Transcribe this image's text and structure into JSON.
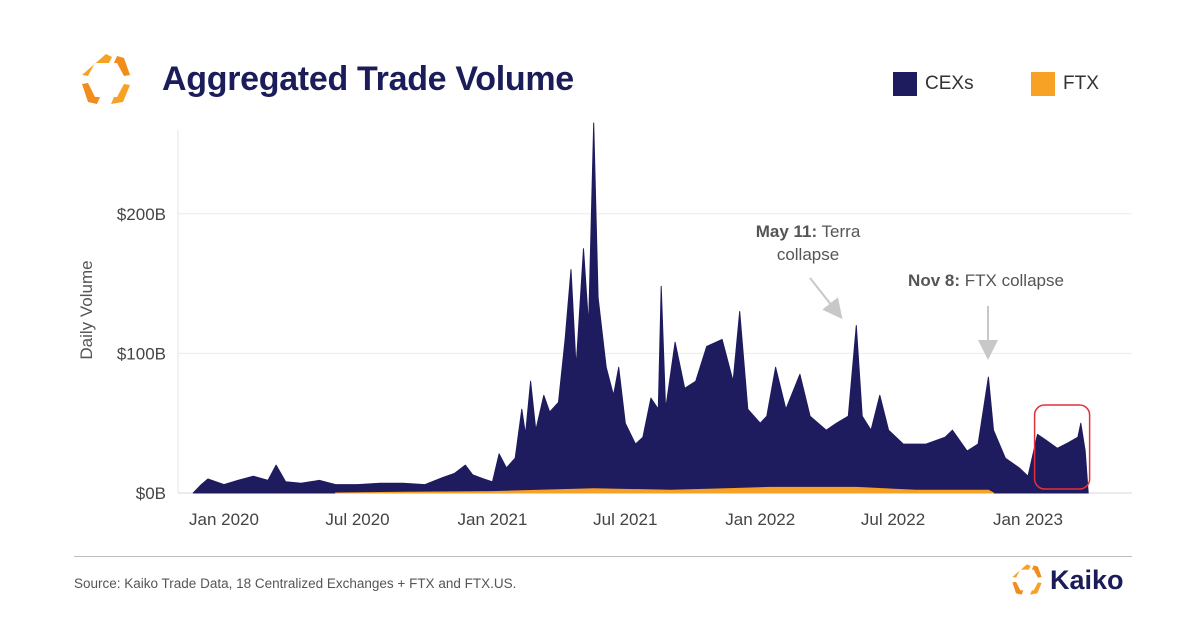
{
  "header": {
    "title": "Aggregated Trade Volume",
    "logo_icon": "kaiko-logo-icon"
  },
  "legend": [
    {
      "label": "CEXs",
      "color": "#1e1b5e"
    },
    {
      "label": "FTX",
      "color": "#f7a125"
    }
  ],
  "footer": {
    "source": "Source: Kaiko Trade Data, 18 Centralized Exchanges + FTX and FTX.US.",
    "brand": "Kaiko"
  },
  "chart_data": {
    "type": "area",
    "title": "Aggregated Trade Volume",
    "xlabel": "",
    "ylabel": "Daily Volume",
    "ylim": [
      0,
      260
    ],
    "y_unit": "billion USD",
    "yticks": [
      {
        "value": 0,
        "label": "$0B"
      },
      {
        "value": 100,
        "label": "$100B"
      },
      {
        "value": 200,
        "label": "$200B"
      }
    ],
    "xticks": [
      {
        "date": "2020-01-01",
        "label": "Jan 2020"
      },
      {
        "date": "2020-07-01",
        "label": "Jul 2020"
      },
      {
        "date": "2021-01-01",
        "label": "Jan 2021"
      },
      {
        "date": "2021-07-01",
        "label": "Jul 2021"
      },
      {
        "date": "2022-01-01",
        "label": "Jan 2022"
      },
      {
        "date": "2022-07-01",
        "label": "Jul 2022"
      },
      {
        "date": "2023-01-01",
        "label": "Jan 2023"
      }
    ],
    "grid": true,
    "series": [
      {
        "name": "CEXs",
        "color": "#1e1b5e",
        "points": [
          [
            "2019-11-20",
            0
          ],
          [
            "2019-12-01",
            6
          ],
          [
            "2019-12-10",
            10
          ],
          [
            "2020-01-01",
            6
          ],
          [
            "2020-01-20",
            9
          ],
          [
            "2020-02-10",
            12
          ],
          [
            "2020-03-01",
            9
          ],
          [
            "2020-03-12",
            20
          ],
          [
            "2020-03-25",
            8
          ],
          [
            "2020-04-15",
            7
          ],
          [
            "2020-05-10",
            9
          ],
          [
            "2020-06-01",
            6
          ],
          [
            "2020-07-01",
            6
          ],
          [
            "2020-08-01",
            7
          ],
          [
            "2020-09-01",
            7
          ],
          [
            "2020-10-01",
            6
          ],
          [
            "2020-10-25",
            11
          ],
          [
            "2020-11-10",
            14
          ],
          [
            "2020-11-25",
            20
          ],
          [
            "2020-12-05",
            13
          ],
          [
            "2020-12-20",
            10
          ],
          [
            "2021-01-01",
            8
          ],
          [
            "2021-01-10",
            28
          ],
          [
            "2021-01-20",
            18
          ],
          [
            "2021-02-01",
            25
          ],
          [
            "2021-02-10",
            60
          ],
          [
            "2021-02-15",
            42
          ],
          [
            "2021-02-22",
            80
          ],
          [
            "2021-03-01",
            45
          ],
          [
            "2021-03-12",
            70
          ],
          [
            "2021-03-20",
            58
          ],
          [
            "2021-04-01",
            65
          ],
          [
            "2021-04-10",
            110
          ],
          [
            "2021-04-18",
            160
          ],
          [
            "2021-04-25",
            90
          ],
          [
            "2021-05-05",
            175
          ],
          [
            "2021-05-12",
            120
          ],
          [
            "2021-05-19",
            265
          ],
          [
            "2021-05-25",
            140
          ],
          [
            "2021-06-05",
            90
          ],
          [
            "2021-06-15",
            70
          ],
          [
            "2021-06-22",
            90
          ],
          [
            "2021-07-01",
            50
          ],
          [
            "2021-07-15",
            35
          ],
          [
            "2021-07-25",
            40
          ],
          [
            "2021-08-05",
            68
          ],
          [
            "2021-08-15",
            60
          ],
          [
            "2021-08-19",
            148
          ],
          [
            "2021-08-25",
            60
          ],
          [
            "2021-09-07",
            108
          ],
          [
            "2021-09-20",
            75
          ],
          [
            "2021-10-05",
            80
          ],
          [
            "2021-10-20",
            105
          ],
          [
            "2021-11-10",
            110
          ],
          [
            "2021-11-25",
            80
          ],
          [
            "2021-12-04",
            130
          ],
          [
            "2021-12-15",
            60
          ],
          [
            "2022-01-01",
            50
          ],
          [
            "2022-01-10",
            55
          ],
          [
            "2022-01-22",
            90
          ],
          [
            "2022-02-05",
            60
          ],
          [
            "2022-02-24",
            85
          ],
          [
            "2022-03-10",
            55
          ],
          [
            "2022-04-01",
            45
          ],
          [
            "2022-04-15",
            50
          ],
          [
            "2022-05-01",
            55
          ],
          [
            "2022-05-12",
            120
          ],
          [
            "2022-05-20",
            55
          ],
          [
            "2022-06-01",
            45
          ],
          [
            "2022-06-13",
            70
          ],
          [
            "2022-06-25",
            45
          ],
          [
            "2022-07-15",
            35
          ],
          [
            "2022-08-15",
            35
          ],
          [
            "2022-09-10",
            40
          ],
          [
            "2022-09-20",
            45
          ],
          [
            "2022-10-10",
            30
          ],
          [
            "2022-10-25",
            35
          ],
          [
            "2022-11-08",
            83
          ],
          [
            "2022-11-15",
            45
          ],
          [
            "2022-12-01",
            25
          ],
          [
            "2022-12-20",
            18
          ],
          [
            "2023-01-01",
            12
          ],
          [
            "2023-01-14",
            42
          ],
          [
            "2023-01-25",
            38
          ],
          [
            "2023-02-10",
            32
          ],
          [
            "2023-02-25",
            36
          ],
          [
            "2023-03-10",
            40
          ],
          [
            "2023-03-14",
            50
          ],
          [
            "2023-03-20",
            30
          ],
          [
            "2023-03-24",
            0
          ]
        ]
      },
      {
        "name": "FTX",
        "color": "#f7a125",
        "points": [
          [
            "2020-06-01",
            0
          ],
          [
            "2020-09-01",
            0.5
          ],
          [
            "2021-01-01",
            1
          ],
          [
            "2021-05-19",
            3
          ],
          [
            "2021-09-01",
            2
          ],
          [
            "2021-11-15",
            3
          ],
          [
            "2022-01-15",
            4
          ],
          [
            "2022-05-12",
            4
          ],
          [
            "2022-08-01",
            2
          ],
          [
            "2022-11-08",
            2
          ],
          [
            "2022-11-15",
            0
          ]
        ]
      }
    ],
    "annotations": [
      {
        "bold": "May 11:",
        "text": " Terra",
        "text2": "collapse",
        "date": "2022-05-11"
      },
      {
        "bold": "Nov 8:",
        "text": " FTX collapse",
        "date": "2022-11-08"
      }
    ],
    "highlight": {
      "from": "2023-01-10",
      "to": "2023-03-26",
      "color": "#e0313c"
    }
  }
}
